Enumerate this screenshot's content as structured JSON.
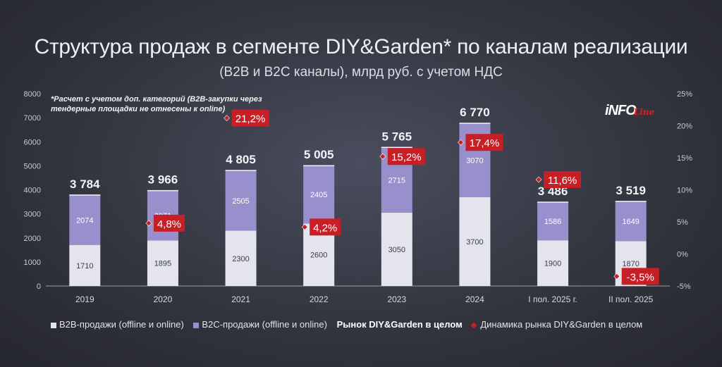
{
  "header": {
    "title": "Структура продаж в сегменте DIY&Garden* по каналам реализации",
    "subtitle": "(B2B и B2C каналы), млрд руб. с учетом НДС"
  },
  "footnote": "*Расчет с учетом доп. категорий (B2B-закупки через тендерные площадки не отнесены к online)",
  "logo": {
    "main": "iNFO",
    "tail": "Line"
  },
  "colors": {
    "b2b": "#e4e4ec",
    "b2c": "#9790cc",
    "growth": "#c81e26",
    "axis_text": "#c8c9d2"
  },
  "legend": {
    "b2b": "B2B-продажи (offline и online)",
    "b2c": "B2C-продажи (offline и online)",
    "total": "Рынок DIY&Garden в целом",
    "growth": "Динамика рынка DIY&Garden в целом"
  },
  "chart_data": {
    "type": "bar",
    "stacked": true,
    "title": "Структура продаж в сегменте DIY&Garden* по каналам реализации",
    "categories": [
      "2019",
      "2020",
      "2021",
      "2022",
      "2023",
      "2024",
      "I пол. 2025 г.",
      "II пол. 2025"
    ],
    "series": [
      {
        "name": "B2B-продажи (offline и online)",
        "values": [
          1710,
          1895,
          2300,
          2600,
          3050,
          3700,
          1900,
          1870
        ]
      },
      {
        "name": "B2C-продажи (offline и online)",
        "values": [
          2074,
          2071,
          2505,
          2405,
          2715,
          3070,
          1586,
          1649
        ]
      }
    ],
    "totals": [
      3784,
      3966,
      4805,
      5005,
      5765,
      6770,
      3486,
      3519
    ],
    "total_labels": [
      "3 784",
      "3 966",
      "4 805",
      "5 005",
      "5 765",
      "6 770",
      "3 486",
      "3 519"
    ],
    "growth": {
      "name": "Динамика рынка DIY&Garden в целом",
      "values": [
        null,
        4.8,
        21.2,
        4.2,
        15.2,
        17.4,
        11.6,
        -3.5
      ],
      "labels": [
        "",
        "4,8%",
        "21,2%",
        "4,2%",
        "15,2%",
        "17,4%",
        "11,6%",
        "-3,5%"
      ]
    },
    "ylim": [
      0,
      8000
    ],
    "yticks": [
      0,
      1000,
      2000,
      3000,
      4000,
      5000,
      6000,
      7000,
      8000
    ],
    "y2lim": [
      -5,
      25
    ],
    "y2ticks": [
      -5,
      0,
      5,
      10,
      15,
      20,
      25
    ],
    "y2tick_labels": [
      "-5%",
      "0%",
      "5%",
      "10%",
      "15%",
      "20%",
      "25%"
    ]
  }
}
